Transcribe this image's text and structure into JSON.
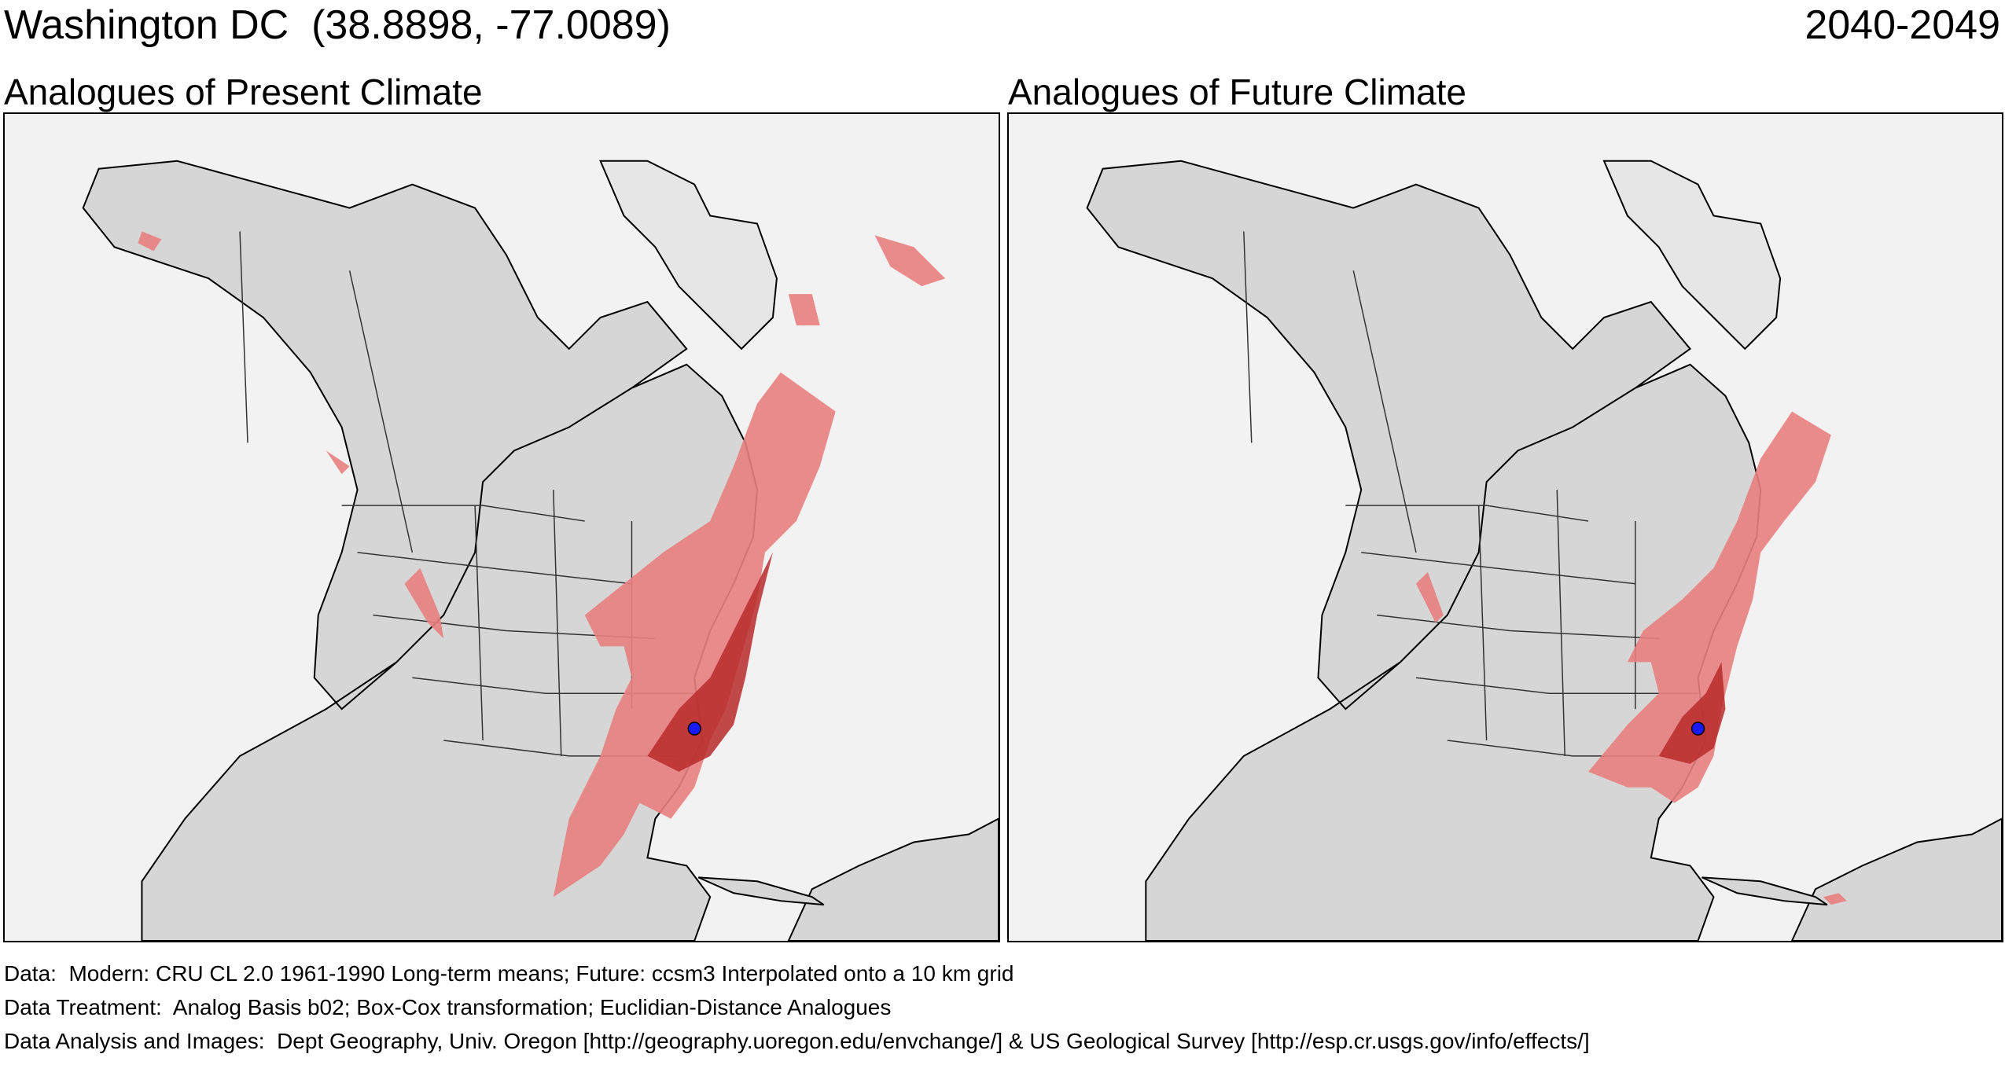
{
  "header": {
    "location": "Washington DC  (38.8898, -77.0089)",
    "period": "2040-2049"
  },
  "panels": [
    {
      "id": "present",
      "title": "Analogues of Present Climate"
    },
    {
      "id": "future",
      "title": "Analogues of Future Climate"
    }
  ],
  "colors": {
    "land": "#d6d6d6",
    "ocean": "#f2f2f2",
    "analog_light": "#e98080",
    "analog_dark": "#b82a2a",
    "site_marker": "#1a1aff",
    "borders": "#000000"
  },
  "site_marker": {
    "name": "Washington DC",
    "lat": 38.8898,
    "lon": -77.0089
  },
  "credits": {
    "data": "Data:  Modern: CRU CL 2.0 1961-1990 Long-term means; Future: ccsm3 Interpolated onto a 10 km grid",
    "treatment": "Data Treatment:  Analog Basis b02; Box-Cox transformation; Euclidian-Distance Analogues",
    "analysis": "Data Analysis and Images:  Dept Geography, Univ. Oregon [http://geography.uoregon.edu/envchange/] & US Geological Survey [http://esp.cr.usgs.gov/info/effects/]"
  }
}
